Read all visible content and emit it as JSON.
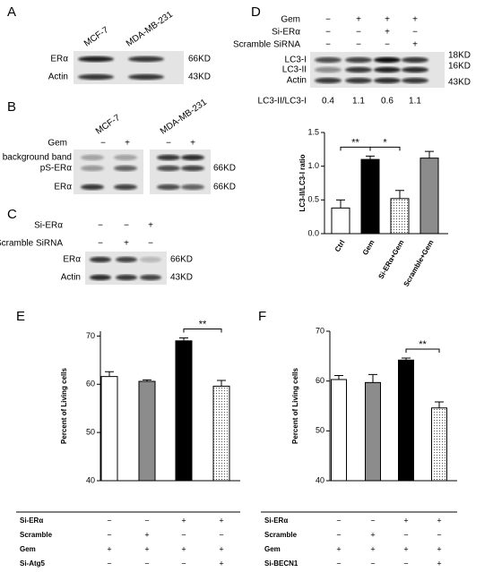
{
  "panels": {
    "A": {
      "label": "A",
      "columns": [
        "MCF-7",
        "MDA-MB-231"
      ],
      "rows": [
        {
          "name": "ERα",
          "size": "66KD"
        },
        {
          "name": "Actin",
          "size": "43KD"
        }
      ]
    },
    "B": {
      "label": "B",
      "columns": [
        "MCF-7",
        "MDA-MB-231"
      ],
      "conditions": [
        {
          "name": "Gem",
          "marks": [
            "−",
            "+",
            "−",
            "+"
          ]
        }
      ],
      "rows": [
        {
          "name": "background band"
        },
        {
          "name": "pS-ERα",
          "size": "66KD"
        },
        {
          "name": "ERα",
          "size": "66KD"
        }
      ]
    },
    "C": {
      "label": "C",
      "conditions": [
        {
          "name": "Si-ERα",
          "marks": [
            "−",
            "−",
            "+"
          ]
        },
        {
          "name": "Scramble SiRNA",
          "marks": [
            "−",
            "+",
            "−"
          ]
        }
      ],
      "rows": [
        {
          "name": "ERα",
          "size": "66KD"
        },
        {
          "name": "Actin",
          "size": "43KD"
        }
      ]
    },
    "D": {
      "label": "D",
      "conditions": [
        {
          "name": "Gem",
          "marks": [
            "−",
            "+",
            "+",
            "+"
          ]
        },
        {
          "name": "Si-ERα",
          "marks": [
            "−",
            "−",
            "+",
            "−"
          ]
        },
        {
          "name": "Scramble SiRNA",
          "marks": [
            "−",
            "−",
            "−",
            "+"
          ]
        }
      ],
      "rows": [
        {
          "name": "LC3-I",
          "size": "18KD"
        },
        {
          "name": "LC3-II",
          "size": "16KD"
        },
        {
          "name": "Actin",
          "size": "43KD"
        }
      ],
      "ratio_label": "LC3-II/LC3-I",
      "ratios": [
        0.4,
        1.1,
        0.6,
        1.1
      ]
    },
    "E": {
      "label": "E"
    },
    "F": {
      "label": "F"
    }
  },
  "chart_data": [
    {
      "type": "bar",
      "panel": "D",
      "y_label": "LC3-II/LC3-I ratio",
      "categories": [
        "Ctrl",
        "Gem",
        "Si-ERα+Gem",
        "Scramble+Gem"
      ],
      "values": [
        0.38,
        1.1,
        0.52,
        1.12
      ],
      "errors": [
        0.12,
        0.05,
        0.12,
        0.1
      ],
      "fills": [
        "#ffffff",
        "#000000",
        "dots",
        "#8c8c8c"
      ],
      "ylim": [
        0,
        1.5
      ],
      "yticks": [
        {
          "value": 0,
          "label": "0.0"
        },
        0.5,
        {
          "value": 1,
          "label": "1.0"
        },
        1.5
      ],
      "significance": [
        {
          "from": 0,
          "to": 1,
          "label": "**"
        },
        {
          "from": 1,
          "to": 2,
          "label": "*"
        }
      ]
    },
    {
      "type": "bar",
      "panel": "E",
      "y_label": "Percent of Living cells",
      "values": [
        61.6,
        60.6,
        69,
        59.6
      ],
      "errors": [
        1,
        0.3,
        0.6,
        1.2
      ],
      "fills": [
        "#ffffff",
        "#8c8c8c",
        "#000000",
        "dots"
      ],
      "ylim": [
        40,
        71
      ],
      "yticks": [
        40,
        50,
        60,
        70
      ],
      "significance": [
        {
          "from": 2,
          "to": 3,
          "label": "**"
        }
      ],
      "conditions": [
        {
          "name": "Si-ERα",
          "marks": [
            "−",
            "−",
            "+",
            "+"
          ]
        },
        {
          "name": "Scramble",
          "marks": [
            "−",
            "+",
            "−",
            "−"
          ]
        },
        {
          "name": "Gem",
          "marks": [
            "+",
            "+",
            "+",
            "+"
          ]
        },
        {
          "name": "Si-Atg5",
          "marks": [
            "−",
            "−",
            "−",
            "+"
          ]
        }
      ]
    },
    {
      "type": "bar",
      "panel": "F",
      "y_label": "Percent of Living cells",
      "values": [
        60.3,
        59.7,
        64.2,
        54.6
      ],
      "errors": [
        0.8,
        1.6,
        0.4,
        1.2
      ],
      "fills": [
        "#ffffff",
        "#8c8c8c",
        "#000000",
        "dots"
      ],
      "ylim": [
        40,
        70
      ],
      "yticks": [
        40,
        50,
        60,
        70
      ],
      "significance": [
        {
          "from": 2,
          "to": 3,
          "label": "**"
        }
      ],
      "conditions": [
        {
          "name": "Si-ERα",
          "marks": [
            "−",
            "−",
            "+",
            "+"
          ]
        },
        {
          "name": "Scramble",
          "marks": [
            "−",
            "+",
            "−",
            "−"
          ]
        },
        {
          "name": "Gem",
          "marks": [
            "+",
            "+",
            "+",
            "+"
          ]
        },
        {
          "name": "Si-BECN1",
          "marks": [
            "−",
            "−",
            "−",
            "+"
          ]
        }
      ]
    }
  ]
}
